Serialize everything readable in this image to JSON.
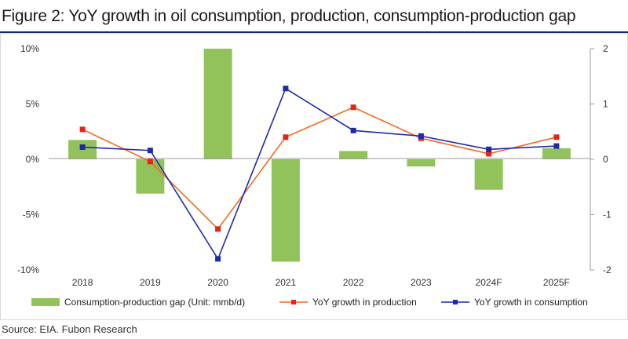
{
  "figure_title": "Figure 2: YoY growth in oil consumption, production, consumption-production gap",
  "source": "Source: EIA. Fubon Research",
  "colors": {
    "gap_bar": "#92c25a",
    "production": "#f26b1d",
    "consumption": "#1f2aa8",
    "axis": "#888888"
  },
  "chart_data": {
    "type": "bar+line",
    "title": "YoY growth in oil consumption, production, consumption-production gap",
    "categories": [
      "2018",
      "2019",
      "2020",
      "2021",
      "2022",
      "2023",
      "2024F",
      "2025F"
    ],
    "left_axis": {
      "range": [
        -10,
        10
      ],
      "ticks": [
        10,
        5,
        0,
        -5,
        -10
      ],
      "tick_labels": [
        "10%",
        "5%",
        "0%",
        "-5%",
        "-10%"
      ]
    },
    "right_axis": {
      "range": [
        -2,
        2
      ],
      "ticks": [
        2,
        1,
        0,
        -1,
        -2
      ],
      "tick_labels": [
        "2",
        "1",
        "0",
        "-1",
        "-2"
      ]
    },
    "series": [
      {
        "name": "Consumption-production gap (Unit: mmb/d)",
        "kind": "bar",
        "axis": "right",
        "values": [
          0.35,
          -0.62,
          2.0,
          -1.85,
          0.15,
          -0.13,
          -0.55,
          0.2
        ]
      },
      {
        "name": "YoY growth in production",
        "kind": "line",
        "axis": "left",
        "values": [
          2.7,
          -0.2,
          -6.3,
          2.0,
          4.7,
          1.9,
          0.5,
          2.0
        ]
      },
      {
        "name": "YoY growth in consumption",
        "kind": "line",
        "axis": "left",
        "values": [
          1.1,
          0.8,
          -9.0,
          6.4,
          2.6,
          2.1,
          0.9,
          1.2
        ]
      }
    ],
    "legend_position": "bottom",
    "grid": false
  }
}
